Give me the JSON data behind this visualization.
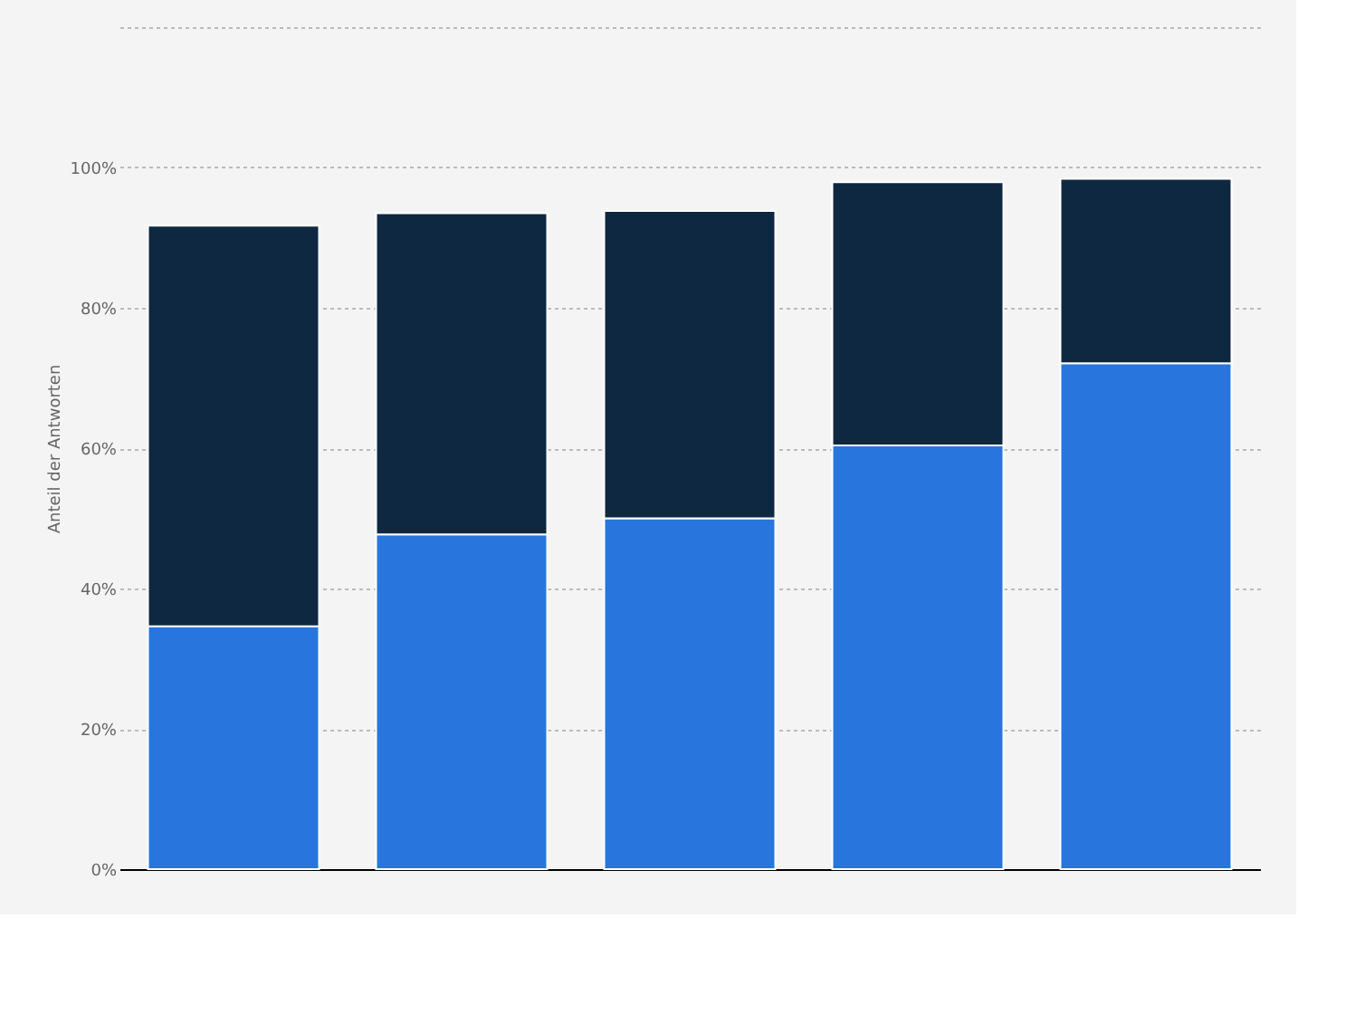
{
  "chart_data": {
    "type": "bar",
    "stacked": true,
    "ylabel": "Anteil der Antworten",
    "categories": [
      null,
      null,
      null,
      null,
      null
    ],
    "series": [
      {
        "color": "#2876dd",
        "values": [
          34.6,
          47.7,
          50.0,
          60.4,
          72.1
        ]
      },
      {
        "color": "#0f2841",
        "values": [
          57.1,
          45.8,
          43.8,
          37.5,
          26.3
        ]
      }
    ],
    "ylim": [
      0,
      120
    ],
    "yticks": [
      {
        "value": 0,
        "label": "0%"
      },
      {
        "value": 20,
        "label": "20%"
      },
      {
        "value": 40,
        "label": "40%"
      },
      {
        "value": 60,
        "label": "60%"
      },
      {
        "value": 80,
        "label": "80%"
      },
      {
        "value": 100,
        "label": "100%"
      },
      {
        "value": 120,
        "label": null
      }
    ],
    "grid": "y",
    "tick_labels": "y"
  }
}
